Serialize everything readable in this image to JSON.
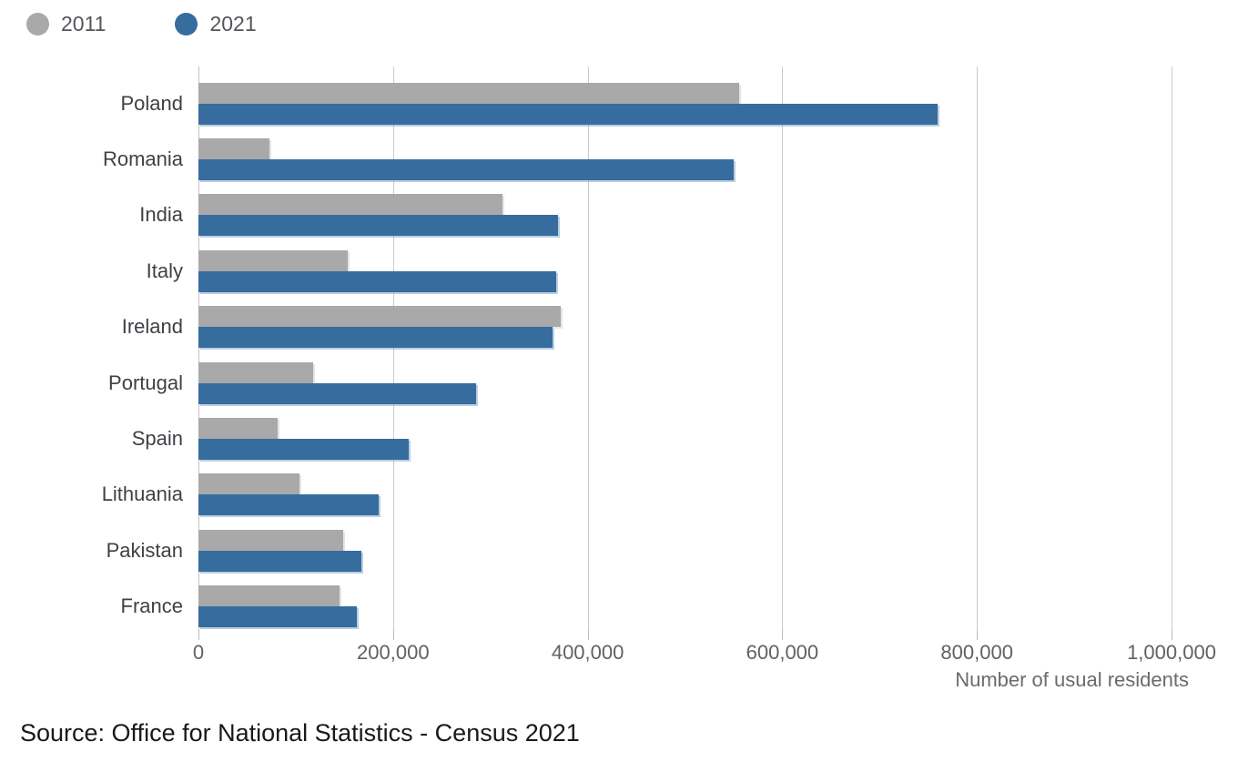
{
  "chart_data": {
    "type": "bar",
    "orientation": "horizontal",
    "title": "",
    "categories": [
      "Poland",
      "Romania",
      "India",
      "Italy",
      "Ireland",
      "Portugal",
      "Spain",
      "Lithuania",
      "Pakistan",
      "France"
    ],
    "series": [
      {
        "name": "2011",
        "color": "#a9a9a9",
        "values": [
          556000,
          73000,
          312000,
          153000,
          372000,
          118000,
          81000,
          104000,
          149000,
          145000
        ]
      },
      {
        "name": "2021",
        "color": "#376c9e",
        "values": [
          760000,
          550000,
          369000,
          368000,
          364000,
          285000,
          216000,
          185000,
          167000,
          163000
        ]
      }
    ],
    "xlabel": "Number of usual residents",
    "xlim": [
      0,
      1000000
    ],
    "x_tick_values": [
      0,
      200000,
      400000,
      600000,
      800000,
      1000000
    ],
    "x_tick_labels": [
      "0",
      "200,000",
      "400,000",
      "600,000",
      "800,000",
      "1,000,000"
    ],
    "grid": true,
    "legend_position": "top-left"
  },
  "legend": {
    "items": [
      {
        "label": "2011",
        "color": "#a9a9a9"
      },
      {
        "label": "2021",
        "color": "#376c9e"
      }
    ]
  },
  "source": {
    "text": "Source: Office for National Statistics - Census 2021"
  },
  "colors": {
    "bar_2011": "#a9a9a9",
    "bar_2021": "#376c9e",
    "gridline": "#cbcbcb",
    "tick_text": "#5f6165",
    "category_text": "#3e4145",
    "legend_text": "#54565b",
    "source_text": "#191919"
  }
}
